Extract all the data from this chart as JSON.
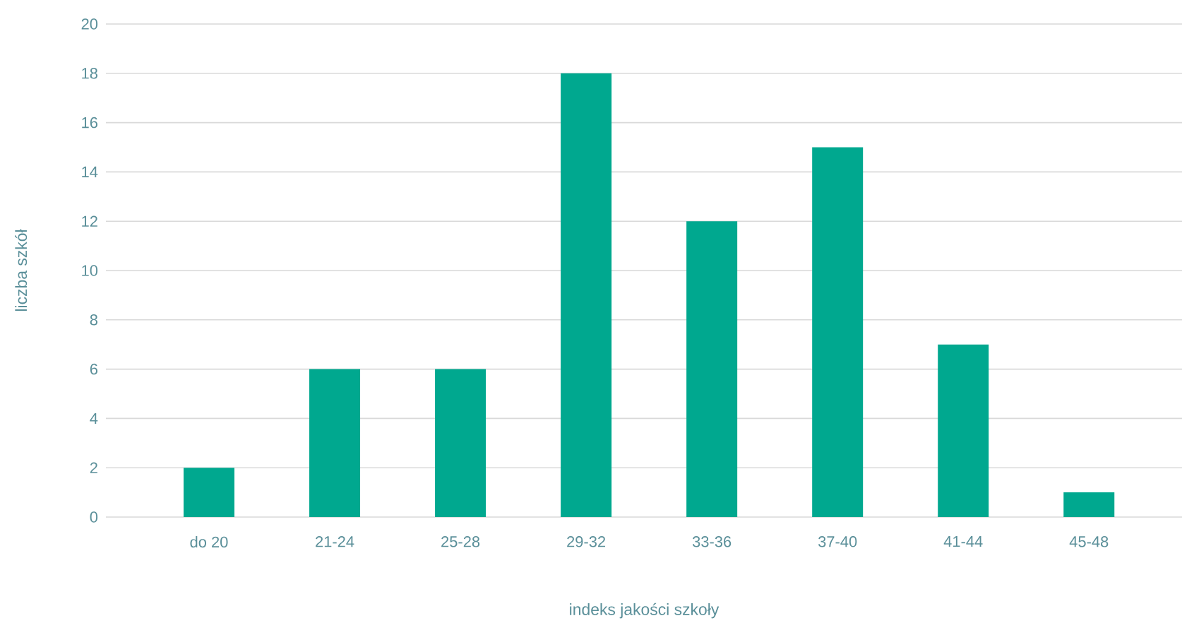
{
  "chart_data": {
    "type": "bar",
    "xlabel": "indeks jakości szkoły",
    "ylabel": "liczba szkół",
    "categories": [
      "do 20",
      "21-24",
      "25-28",
      "29-32",
      "33-36",
      "37-40",
      "41-44",
      "45-48"
    ],
    "values": [
      2,
      6,
      6,
      18,
      12,
      15,
      7,
      1
    ],
    "color": "#00a88f",
    "ylim": [
      0,
      20
    ],
    "yticks": [
      0,
      2,
      4,
      6,
      8,
      10,
      12,
      14,
      16,
      18,
      20
    ],
    "grid": "y"
  }
}
